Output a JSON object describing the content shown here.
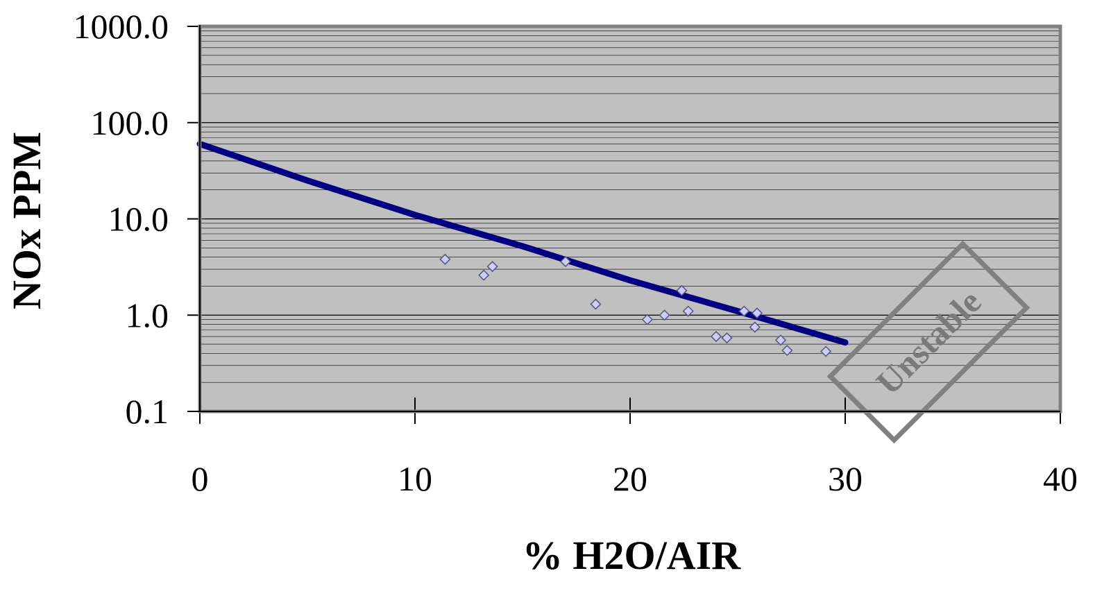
{
  "chart_data": {
    "type": "scatter",
    "title": "",
    "xlabel": "% H2O/AIR",
    "ylabel": "NOx PPM",
    "xlim": [
      0,
      40
    ],
    "ylim": [
      0.1,
      1000
    ],
    "yscale": "log",
    "x_ticks": [
      "0",
      "10",
      "20",
      "30",
      "40"
    ],
    "y_ticks": [
      "0.1",
      "1.0",
      "10.0",
      "100.0",
      "1000.0"
    ],
    "grid": "horizontal minor gridlines on log scale",
    "plot_background": "#c0c0c0",
    "series": [
      {
        "kind": "line",
        "color": "#000080",
        "x": [
          0,
          5,
          10,
          15,
          20,
          25,
          30
        ],
        "y": [
          60,
          25,
          11,
          5.2,
          2.3,
          1.1,
          0.52
        ]
      },
      {
        "kind": "points",
        "marker": "diamond",
        "color": "#ccccff",
        "x": [
          11.4,
          13.2,
          13.6,
          17.0,
          18.4,
          20.8,
          21.6,
          22.4,
          22.7,
          24.0,
          24.5,
          25.3,
          25.8,
          25.9,
          27.0,
          27.3,
          29.1
        ],
        "y": [
          3.8,
          2.6,
          3.2,
          3.6,
          1.3,
          0.9,
          1.0,
          1.8,
          1.1,
          0.6,
          0.58,
          1.1,
          0.75,
          1.05,
          0.55,
          0.43,
          0.42
        ]
      }
    ],
    "annotation": "Unstable"
  }
}
